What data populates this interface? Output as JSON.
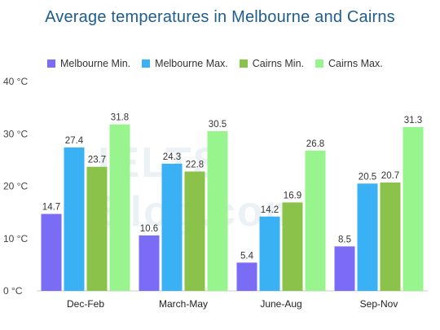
{
  "chart_data": {
    "type": "bar",
    "title": "Average temperatures in Melbourne and Cairns",
    "categories": [
      "Dec-Feb",
      "March-May",
      "June-Aug",
      "Sep-Nov"
    ],
    "series": [
      {
        "name": "Melbourne Min.",
        "color": "#7b6cf6",
        "values": [
          14.7,
          10.6,
          5.4,
          8.5
        ],
        "labels": [
          "14.7",
          "10.6",
          "5.4",
          "8.5"
        ]
      },
      {
        "name": "Melbourne Max.",
        "color": "#3ab0f5",
        "values": [
          27.4,
          24.3,
          14.2,
          20.5
        ],
        "labels": [
          "27.4",
          "24.3",
          "14.2",
          "20.5"
        ]
      },
      {
        "name": "Cairns Min.",
        "color": "#8bc34a",
        "values": [
          23.7,
          22.8,
          16.9,
          20.7
        ],
        "labels": [
          "23.7",
          "22.8",
          "16.9",
          "20.7"
        ]
      },
      {
        "name": "Cairns Max.",
        "color": "#98f58e",
        "values": [
          31.8,
          30.5,
          26.8,
          31.3
        ],
        "labels": [
          "31.8",
          "30.5",
          "26.8",
          "31.3"
        ]
      }
    ],
    "yticks": [
      {
        "value": 0,
        "label": "0 °C"
      },
      {
        "value": 10,
        "label": "10 °C"
      },
      {
        "value": 20,
        "label": "20 °C"
      },
      {
        "value": 30,
        "label": "30 °C"
      },
      {
        "value": 40,
        "label": "40 °C"
      }
    ],
    "ylim": [
      0,
      40
    ],
    "grid": false,
    "legend_position": "top"
  },
  "watermark": "IELTS Blog.com"
}
